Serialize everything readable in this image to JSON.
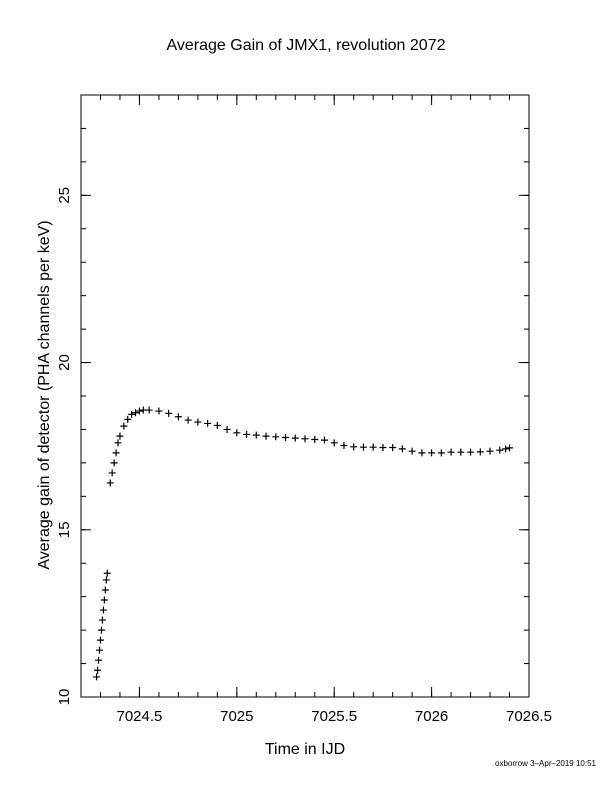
{
  "chart_data": {
    "type": "scatter",
    "title": "Average Gain of JMX1, revolution 2072",
    "xlabel": "Time in IJD",
    "ylabel": "Average gain of detector (PHA channels per keV)",
    "xlim": [
      7024.2,
      7026.5
    ],
    "ylim": [
      10,
      28
    ],
    "xticks": [
      7024.5,
      7025,
      7025.5,
      7026,
      7026.5
    ],
    "xtick_labels": [
      "7024.5",
      "7025",
      "7025.5",
      "7026",
      "7026.5"
    ],
    "yticks": [
      10,
      15,
      20,
      25
    ],
    "ytick_labels": [
      "10",
      "15",
      "20",
      "25"
    ],
    "grid": false,
    "marker": "+",
    "color": "#000000",
    "series": [
      {
        "x": [
          7024.28,
          7024.285,
          7024.29,
          7024.295,
          7024.3,
          7024.305,
          7024.31,
          7024.315,
          7024.32,
          7024.325,
          7024.33,
          7024.335
        ],
        "y": [
          10.6,
          10.8,
          11.1,
          11.4,
          11.7,
          12.0,
          12.3,
          12.6,
          12.9,
          13.2,
          13.5,
          13.7
        ]
      },
      {
        "x": [
          7024.35,
          7024.36,
          7024.37,
          7024.38,
          7024.39,
          7024.4,
          7024.42,
          7024.44,
          7024.46,
          7024.48,
          7024.5,
          7024.52,
          7024.55,
          7024.6,
          7024.65,
          7024.7,
          7024.75,
          7024.8,
          7024.85,
          7024.9,
          7024.95,
          7025.0,
          7025.05,
          7025.1,
          7025.15,
          7025.2,
          7025.25,
          7025.3,
          7025.35,
          7025.4,
          7025.45,
          7025.5,
          7025.55,
          7025.6,
          7025.65,
          7025.7,
          7025.75,
          7025.8,
          7025.85,
          7025.9,
          7025.95,
          7026.0,
          7026.05,
          7026.1,
          7026.15,
          7026.2,
          7026.25,
          7026.3,
          7026.35,
          7026.38,
          7026.4
        ],
        "y": [
          16.4,
          16.7,
          17.0,
          17.3,
          17.6,
          17.8,
          18.1,
          18.3,
          18.45,
          18.5,
          18.55,
          18.58,
          18.58,
          18.55,
          18.48,
          18.38,
          18.28,
          18.22,
          18.18,
          18.12,
          18.0,
          17.9,
          17.85,
          17.83,
          17.8,
          17.78,
          17.76,
          17.74,
          17.72,
          17.7,
          17.68,
          17.6,
          17.52,
          17.48,
          17.47,
          17.47,
          17.46,
          17.46,
          17.42,
          17.35,
          17.3,
          17.3,
          17.3,
          17.32,
          17.32,
          17.32,
          17.33,
          17.35,
          17.38,
          17.42,
          17.45
        ]
      }
    ]
  },
  "footer": "oxborrow  3–Apr–2019 10:51"
}
